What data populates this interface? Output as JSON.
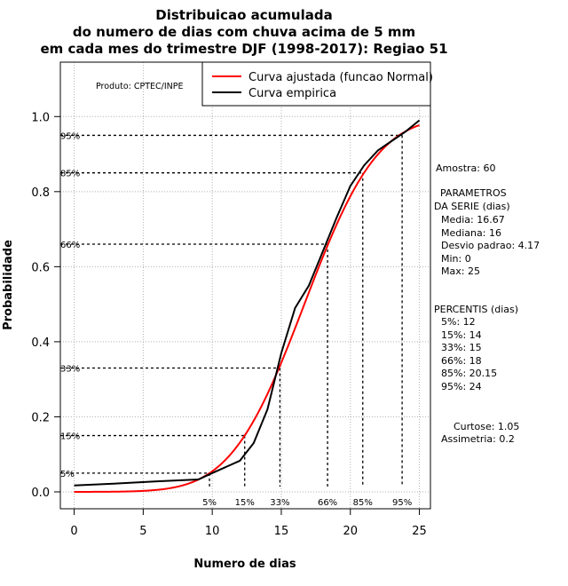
{
  "chart_data": {
    "type": "line",
    "title": [
      "Distribuicao acumulada",
      "do numero de dias com chuva acima de 5 mm",
      "em cada mes do trimestre DJF (1998-2017): Regiao 51"
    ],
    "xlabel": "Numero de dias",
    "ylabel": "Probabilidade",
    "xlim": [
      -1,
      25.8
    ],
    "ylim": [
      -0.045,
      1.145
    ],
    "xticks": [
      0,
      5,
      10,
      15,
      20,
      25
    ],
    "yticks": [
      0.0,
      0.2,
      0.4,
      0.6,
      0.8,
      1.0
    ],
    "xtick_labels": [
      "0",
      "5",
      "10",
      "15",
      "20",
      "25"
    ],
    "ytick_labels": [
      "0.0",
      "0.2",
      "0.4",
      "0.6",
      "0.8",
      "1.0"
    ],
    "grid": true,
    "legend_position": "top-right",
    "product_label": "Produto: CPTEC/INPE",
    "series": [
      {
        "name": "Curva ajustada (funcao Normal)",
        "color": "#ff0000",
        "distribution": "normal",
        "mean": 16.67,
        "sd": 4.17,
        "x_range": [
          0,
          25
        ]
      },
      {
        "name": "Curva empirica",
        "color": "#000000",
        "x": [
          0,
          3,
          6,
          9,
          10,
          12,
          13,
          14,
          15,
          16,
          17,
          18,
          19,
          20,
          21,
          22,
          23,
          24,
          25
        ],
        "y": [
          0.017,
          0.022,
          0.028,
          0.033,
          0.05,
          0.083,
          0.13,
          0.22,
          0.37,
          0.49,
          0.55,
          0.64,
          0.73,
          0.815,
          0.87,
          0.91,
          0.935,
          0.96,
          0.99
        ]
      }
    ],
    "percentile_lines": [
      {
        "label": "5%",
        "x": 9.8,
        "y": 0.05
      },
      {
        "label": "15%",
        "x": 12.35,
        "y": 0.15
      },
      {
        "label": "33%",
        "x": 14.9,
        "y": 0.33
      },
      {
        "label": "66%",
        "x": 18.35,
        "y": 0.66
      },
      {
        "label": "85%",
        "x": 20.9,
        "y": 0.85
      },
      {
        "label": "95%",
        "x": 23.75,
        "y": 0.95
      }
    ]
  },
  "side_panel": {
    "sample": "Amostra: 60",
    "params_heading_1": "PARAMETROS",
    "params_heading_2": "DA SERIE (dias)",
    "params": [
      "Media: 16.67",
      "Mediana: 16",
      "Desvio padrao: 4.17",
      "Min: 0",
      "Max: 25"
    ],
    "percentis_heading": "PERCENTIS (dias)",
    "percentis": [
      "5%: 12",
      "15%: 14",
      "33%: 15",
      "66%: 18",
      "85%: 20.15",
      "95%: 24"
    ],
    "curtose": "Curtose: 1.05",
    "assimetria": "Assimetria: 0.2"
  }
}
